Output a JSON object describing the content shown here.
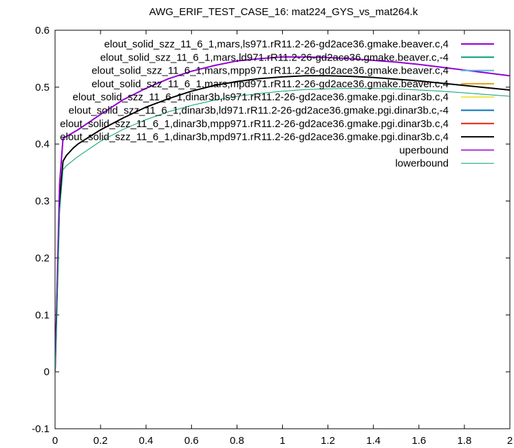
{
  "chart_data": {
    "type": "line",
    "title": "AWG_ERIF_TEST_CASE_16: mat224_GYS_vs_mat264.k",
    "xlabel": "",
    "ylabel": "",
    "xlim": [
      0,
      2
    ],
    "ylim": [
      -0.1,
      0.6
    ],
    "x_ticks": [
      0,
      0.2,
      0.4,
      0.6,
      0.8,
      1,
      1.2,
      1.4,
      1.6,
      1.8,
      2
    ],
    "x_tick_labels": [
      "0",
      "0.2",
      "0.4",
      "0.6",
      "0.8",
      "1",
      "1.2",
      "1.4",
      "1.6",
      "1.8",
      "2"
    ],
    "y_ticks": [
      -0.1,
      0,
      0.1,
      0.2,
      0.3,
      0.4,
      0.5,
      0.6
    ],
    "y_tick_labels": [
      "-0.1",
      "0",
      "0.1",
      "0.2",
      "0.3",
      "0.4",
      "0.5",
      "0.6"
    ],
    "grid": false,
    "legend_position": "top-right",
    "series": [
      {
        "name": "elout_solid_szz_11_6_1,mars,ls971.rR11.2-26-gd2ace36.gmake.beaver.c,4",
        "color": "#9400d3",
        "width": 2,
        "x": [
          0,
          0.02,
          0.035,
          0.1,
          0.2,
          0.3,
          0.4,
          0.5,
          0.6,
          0.7,
          0.8,
          0.9,
          1.0,
          1.1,
          1.2,
          1.3,
          1.4,
          1.5,
          1.6,
          1.7,
          1.8,
          1.9,
          2.0
        ],
        "y": [
          0,
          0.33,
          0.41,
          0.425,
          0.452,
          0.478,
          0.498,
          0.515,
          0.528,
          0.538,
          0.546,
          0.55,
          0.553,
          0.553,
          0.552,
          0.55,
          0.547,
          0.544,
          0.54,
          0.535,
          0.53,
          0.525,
          0.52
        ]
      },
      {
        "name": "elout_solid_szz_11_6_1,mars,ld971.rR11.2-26-gd2ace36.gmake.beaver.c,-4",
        "color": "#009e73",
        "width": 2,
        "x": [],
        "y": []
      },
      {
        "name": "elout_solid_szz_11_6_1,mars,mpp971.rR11.2-26-gd2ace36.gmake.beaver.c,4",
        "color": "#56b4e9",
        "width": 2,
        "x": [],
        "y": []
      },
      {
        "name": "elout_solid_szz_11_6_1,mars,mpd971.rR11.2-26-gd2ace36.gmake.beaver.c,4",
        "color": "#e69f00",
        "width": 2,
        "x": [],
        "y": []
      },
      {
        "name": "elout_solid_szz_11_6_1,dinar3b,ls971.rR11.2-26-gd2ace36.gmake.pgi.dinar3b.c,4",
        "color": "#f0e442",
        "width": 2,
        "x": [],
        "y": []
      },
      {
        "name": "elout_solid_szz_11_6_1,dinar3b,ld971.rR11.2-26-gd2ace36.gmake.pgi.dinar3b.c,-4",
        "color": "#0072b2",
        "width": 2,
        "x": [],
        "y": []
      },
      {
        "name": "elout_solid_szz_11_6_1,dinar3b,mpp971.rR11.2-26-gd2ace36.gmake.pgi.dinar3b.c,4",
        "color": "#e51e10",
        "width": 2,
        "x": [],
        "y": []
      },
      {
        "name": "elout_solid_szz_11_6_1,dinar3b,mpd971.rR11.2-26-gd2ace36.gmake.pgi.dinar3b.c,4",
        "color": "#000000",
        "width": 2,
        "x": [
          0,
          0.02,
          0.035,
          0.05,
          0.08,
          0.1,
          0.2,
          0.3,
          0.4,
          0.5,
          0.6,
          0.7,
          0.8,
          0.9,
          1.0,
          1.1,
          1.2,
          1.3,
          1.4,
          1.5,
          1.6,
          1.7,
          1.8,
          1.9,
          2.0
        ],
        "y": [
          0,
          0.3,
          0.37,
          0.38,
          0.393,
          0.4,
          0.425,
          0.446,
          0.465,
          0.48,
          0.493,
          0.503,
          0.51,
          0.515,
          0.518,
          0.52,
          0.52,
          0.519,
          0.517,
          0.514,
          0.511,
          0.507,
          0.503,
          0.499,
          0.495
        ]
      },
      {
        "name": "uperbound",
        "color": "#9400d3",
        "width": 1.5,
        "x": [
          0,
          0.02,
          0.035,
          0.1,
          0.2,
          0.3,
          0.4,
          0.5,
          0.6,
          0.7,
          0.8,
          0.9,
          1.0,
          1.1,
          1.2,
          1.3,
          1.4,
          1.5,
          1.6,
          1.7,
          1.8,
          1.9,
          2.0
        ],
        "y": [
          0,
          0.33,
          0.41,
          0.425,
          0.452,
          0.478,
          0.498,
          0.515,
          0.528,
          0.538,
          0.546,
          0.55,
          0.553,
          0.553,
          0.552,
          0.55,
          0.547,
          0.544,
          0.54,
          0.535,
          0.53,
          0.525,
          0.52
        ]
      },
      {
        "name": "lowerbound",
        "color": "#009e73",
        "width": 1,
        "x": [
          0,
          0.02,
          0.035,
          0.05,
          0.1,
          0.2,
          0.3,
          0.4,
          0.5,
          0.6,
          0.7,
          0.8,
          0.9,
          1.0,
          1.1,
          1.2,
          1.3,
          1.4,
          1.5,
          1.6,
          1.7,
          1.8,
          1.9,
          2.0
        ],
        "y": [
          0,
          0.28,
          0.355,
          0.362,
          0.378,
          0.405,
          0.426,
          0.443,
          0.457,
          0.468,
          0.477,
          0.484,
          0.489,
          0.493,
          0.496,
          0.497,
          0.498,
          0.498,
          0.497,
          0.495,
          0.493,
          0.49,
          0.487,
          0.484
        ]
      }
    ]
  }
}
